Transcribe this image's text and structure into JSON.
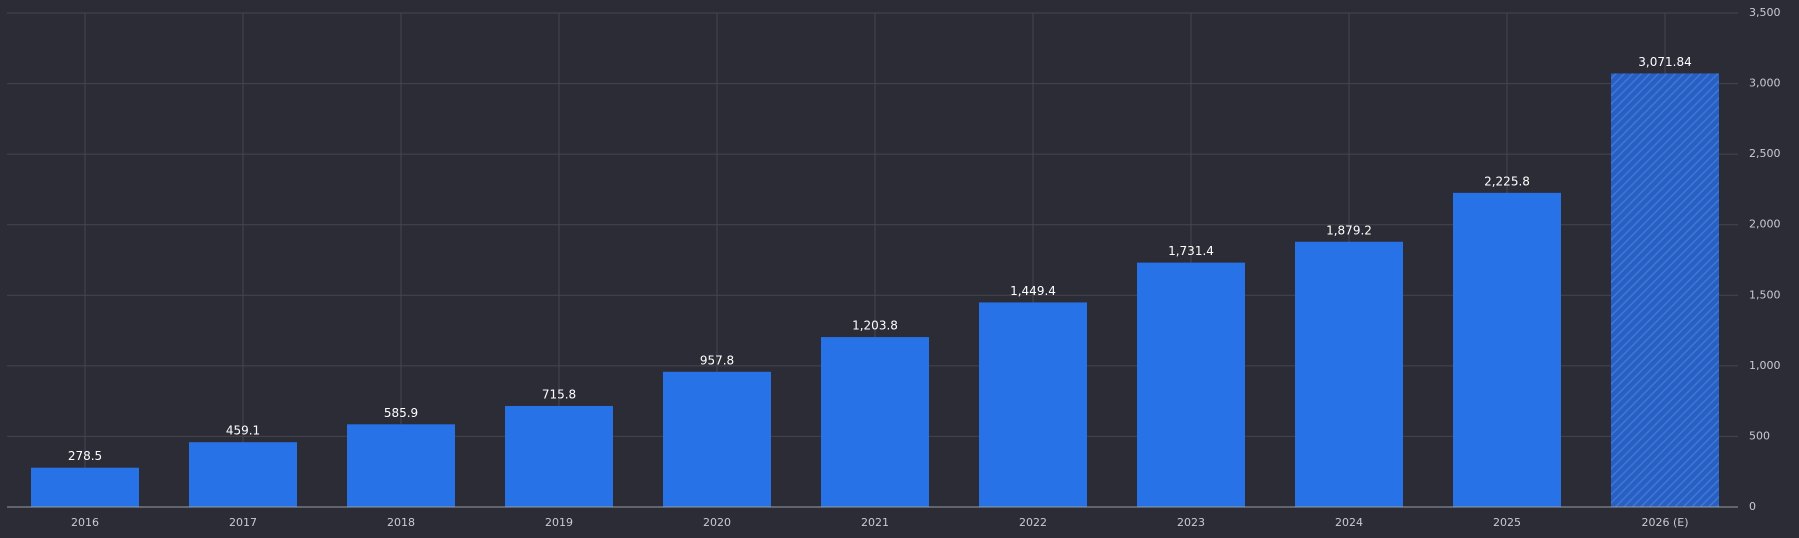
{
  "chart_data": {
    "type": "bar",
    "categories": [
      "2016",
      "2017",
      "2018",
      "2019",
      "2020",
      "2021",
      "2022",
      "2023",
      "2024",
      "2025",
      "2026 (E)"
    ],
    "values": [
      278.5,
      459.1,
      585.9,
      715.8,
      957.8,
      1203.8,
      1449.4,
      1731.4,
      1879.2,
      2225.8,
      3071.84
    ],
    "value_labels": [
      "278.5",
      "459.1",
      "585.9",
      "715.8",
      "957.8",
      "1,203.8",
      "1,449.4",
      "1,731.4",
      "1,879.2",
      "2,225.8",
      "3,071.84"
    ],
    "hatched": [
      false,
      false,
      false,
      false,
      false,
      false,
      false,
      false,
      false,
      false,
      true
    ],
    "color": "#2872e8",
    "ylim": [
      0,
      3500
    ],
    "yticks": [
      0,
      500,
      {
        "value": 1000,
        "label": "1,000"
      },
      {
        "value": 1500,
        "label": "1,500"
      },
      {
        "value": 2000,
        "label": "2,000"
      },
      {
        "value": 2500,
        "label": "2,500"
      },
      {
        "value": 3000,
        "label": "3,000"
      },
      {
        "value": 3500,
        "label": "3,500"
      }
    ],
    "grid": true
  }
}
